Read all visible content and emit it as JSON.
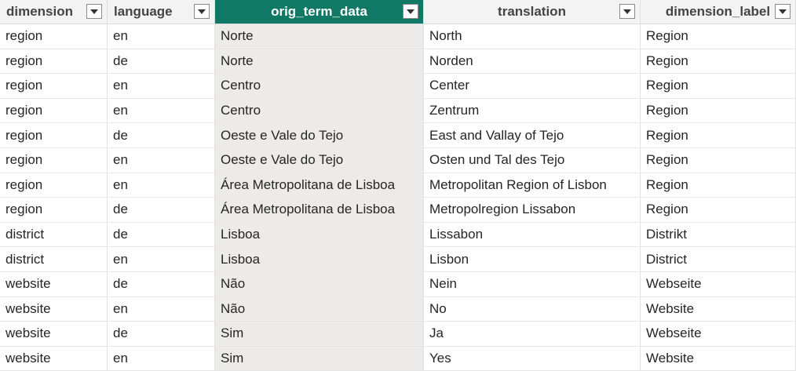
{
  "columns": [
    {
      "key": "dimension",
      "label": "dimension"
    },
    {
      "key": "language",
      "label": "language"
    },
    {
      "key": "orig_term_data",
      "label": "orig_term_data"
    },
    {
      "key": "translation",
      "label": "translation"
    },
    {
      "key": "dimension_label",
      "label": "dimension_label"
    }
  ],
  "colors": {
    "active_header": "#117865",
    "shaded_column": "#ecebe9"
  },
  "filter_icon": "chevron-down-icon",
  "rows": [
    [
      "region",
      "en",
      "Norte",
      "North",
      "Region"
    ],
    [
      "region",
      "de",
      "Norte",
      "Norden",
      "Region"
    ],
    [
      "region",
      "en",
      "Centro",
      "Center",
      "Region"
    ],
    [
      "region",
      "en",
      "Centro",
      "Zentrum",
      "Region"
    ],
    [
      "region",
      "de",
      "Oeste e Vale do Tejo",
      "East and Vallay of Tejo",
      "Region"
    ],
    [
      "region",
      "en",
      "Oeste e Vale do Tejo",
      "Osten und Tal des Tejo",
      "Region"
    ],
    [
      "region",
      "en",
      "Área Metropolitana de Lisboa",
      "Metropolitan Region of Lisbon",
      "Region"
    ],
    [
      "region",
      "de",
      "Área Metropolitana de Lisboa",
      "Metropolregion Lissabon",
      "Region"
    ],
    [
      "district",
      "de",
      "Lisboa",
      "Lissabon",
      "Distrikt"
    ],
    [
      "district",
      "en",
      "Lisboa",
      "Lisbon",
      "District"
    ],
    [
      "website",
      "de",
      "Não",
      "Nein",
      "Webseite"
    ],
    [
      "website",
      "en",
      "Não",
      "No",
      "Website"
    ],
    [
      "website",
      "de",
      "Sim",
      "Ja",
      "Webseite"
    ],
    [
      "website",
      "en",
      "Sim",
      "Yes",
      "Website"
    ]
  ]
}
